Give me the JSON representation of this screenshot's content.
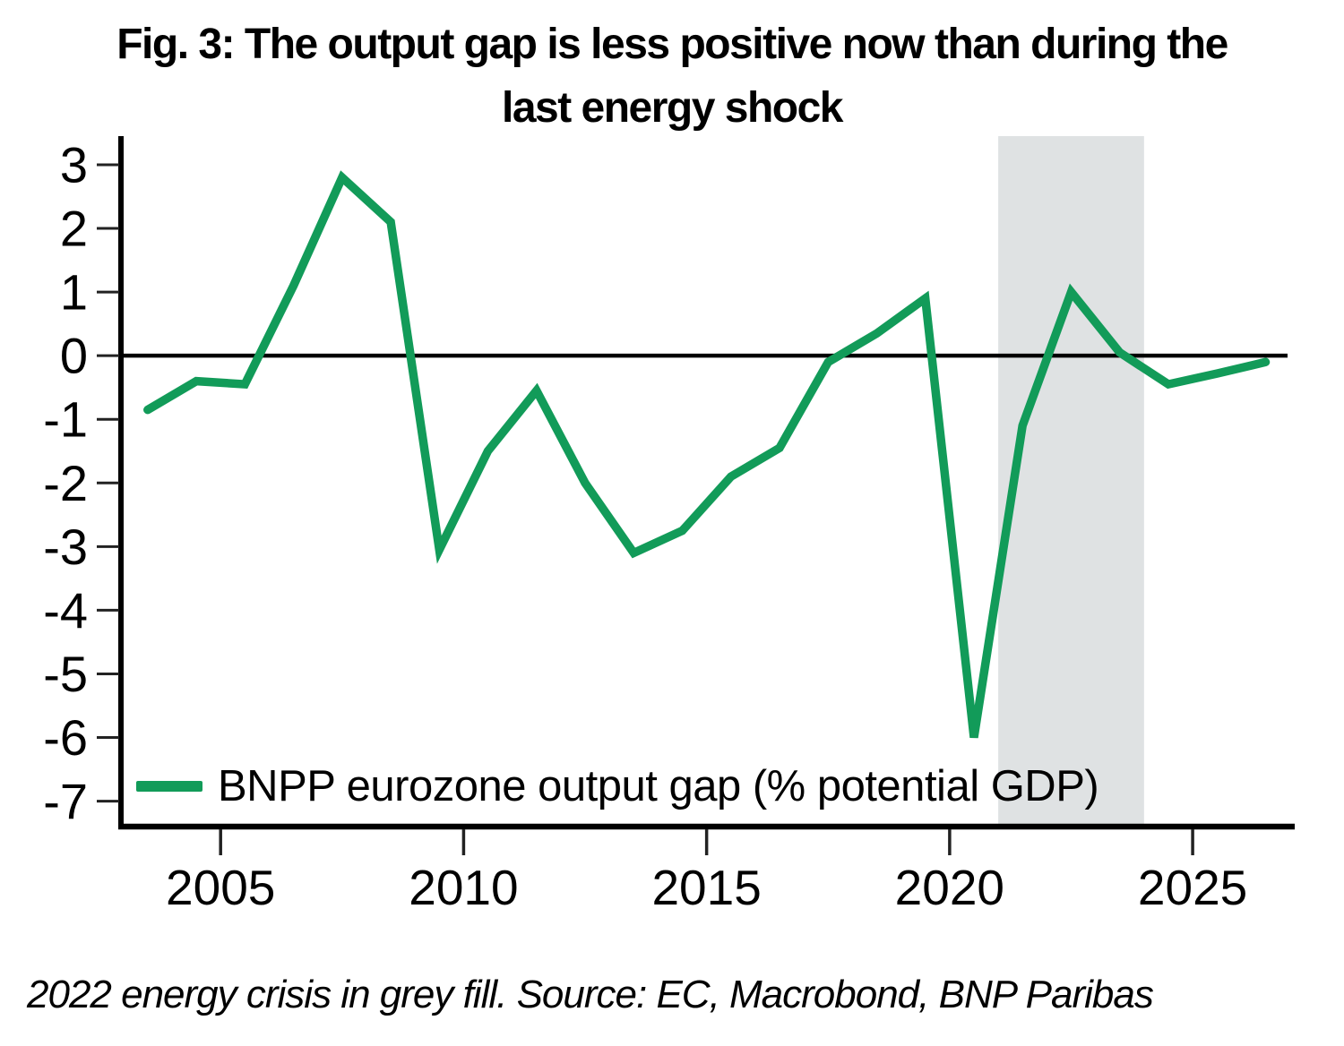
{
  "title": {
    "line1": "Fig. 3: The output gap is less positive now than during the",
    "line2": "last energy shock"
  },
  "legend": {
    "label": "BNPP eurozone output gap (% potential GDP)"
  },
  "footnote": "2022 energy crisis in grey fill. Source: EC, Macrobond, BNP Paribas",
  "colors": {
    "line": "#129b59",
    "band": "#dfe2e3",
    "axis": "#000000",
    "zero_line": "#000000",
    "tick": "#222222",
    "text": "#000000"
  },
  "chart_data": {
    "type": "line",
    "title": "Fig. 3: The output gap is less positive now than during the last energy shock",
    "xlabel": "",
    "ylabel": "",
    "series": [
      {
        "name": "BNPP eurozone output gap (% potential GDP)",
        "x": [
          2003.5,
          2004.5,
          2005.5,
          2006.5,
          2007.5,
          2008.5,
          2009.5,
          2010.5,
          2011.5,
          2012.5,
          2013.5,
          2014.5,
          2015.5,
          2016.5,
          2017.5,
          2018.5,
          2019.5,
          2020.5,
          2021.5,
          2022.5,
          2023.5,
          2024.5,
          2025.5,
          2026.5
        ],
        "values": [
          -0.85,
          -0.4,
          -0.45,
          1.1,
          2.8,
          2.1,
          -3.05,
          -1.5,
          -0.55,
          -2.0,
          -3.1,
          -2.75,
          -1.9,
          -1.45,
          -0.1,
          0.35,
          0.9,
          -6.0,
          -1.1,
          1.0,
          0.05,
          -0.45,
          -0.28,
          -0.1
        ]
      }
    ],
    "x_ticks": [
      2005,
      2010,
      2015,
      2020,
      2025
    ],
    "y_ticks": [
      3,
      2,
      1,
      0,
      -1,
      -2,
      -3,
      -4,
      -5,
      -6,
      -7
    ],
    "xlim": [
      2002.95,
      2027.1
    ],
    "ylim": [
      -7.4,
      3.45
    ],
    "grid": false,
    "zero_line_at": 0,
    "shaded_band": {
      "x_start": 2021.0,
      "x_end": 2024.0,
      "meaning": "2022 energy crisis"
    },
    "legend_position": "inside-bottom-left"
  }
}
